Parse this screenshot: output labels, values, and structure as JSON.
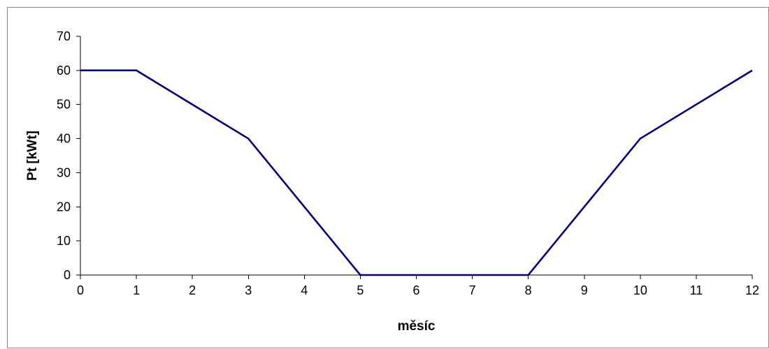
{
  "chart_data": {
    "type": "line",
    "title": "",
    "xlabel": "měsíc",
    "ylabel": "Pt [kWt]",
    "x_tick_labels": [
      "0",
      "1",
      "2",
      "3",
      "4",
      "5",
      "6",
      "7",
      "8",
      "9",
      "10",
      "11",
      "12"
    ],
    "y_tick_labels": [
      "0",
      "10",
      "20",
      "30",
      "40",
      "50",
      "60",
      "70"
    ],
    "xlim": [
      0,
      12
    ],
    "ylim": [
      0,
      70
    ],
    "x_ticks": [
      0,
      1,
      2,
      3,
      4,
      5,
      6,
      7,
      8,
      9,
      10,
      11,
      12
    ],
    "y_ticks": [
      0,
      10,
      20,
      30,
      40,
      50,
      60,
      70
    ],
    "grid": false,
    "legend": "none",
    "series": [
      {
        "color": "#000080",
        "x": [
          0,
          1,
          3,
          5,
          8,
          10,
          12
        ],
        "y": [
          60,
          60,
          40,
          0,
          0,
          40,
          60
        ]
      }
    ]
  }
}
